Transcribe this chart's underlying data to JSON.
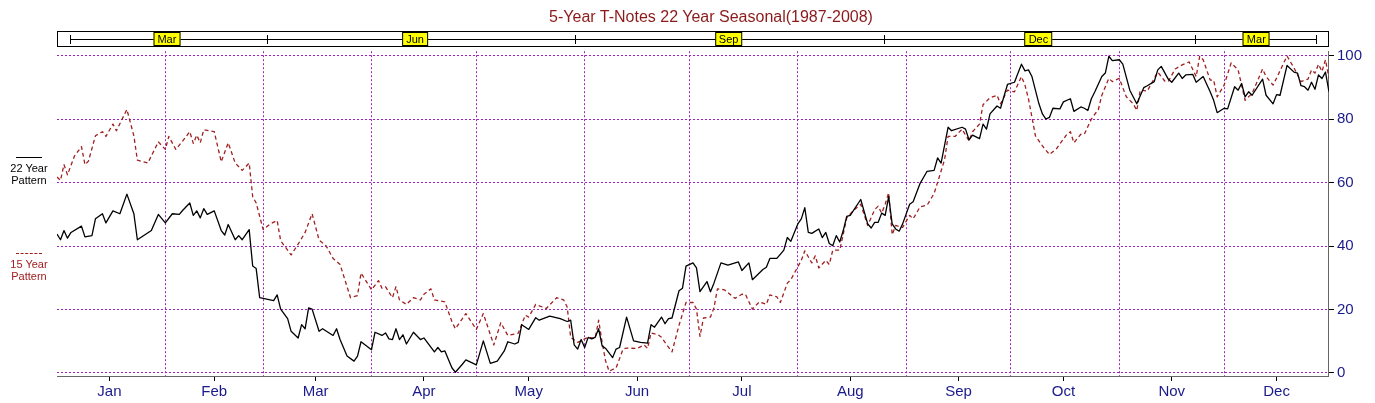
{
  "chart_data": {
    "type": "line",
    "title": "5-Year T-Notes 22 Year Seasonal(1987-2008)",
    "xlim": [
      "--01-01",
      "--12-31"
    ],
    "xticks": [
      {
        "value": "--01-16",
        "label": "Jan"
      },
      {
        "value": "--02-01",
        "label": null
      },
      {
        "value": "--02-15",
        "label": "Feb"
      },
      {
        "value": "--03-01",
        "label": null
      },
      {
        "value": "--03-16",
        "label": "Mar"
      },
      {
        "value": "--04-01",
        "label": null
      },
      {
        "value": "--04-16",
        "label": "Apr"
      },
      {
        "value": "--05-01",
        "label": null
      },
      {
        "value": "--05-16",
        "label": "May"
      },
      {
        "value": "--06-01",
        "label": null
      },
      {
        "value": "--06-16",
        "label": "Jun"
      },
      {
        "value": "--07-01",
        "label": null
      },
      {
        "value": "--07-16",
        "label": "Jul"
      },
      {
        "value": "--08-01",
        "label": null
      },
      {
        "value": "--08-16",
        "label": "Aug"
      },
      {
        "value": "--09-01",
        "label": null
      },
      {
        "value": "--09-16",
        "label": "Sep"
      },
      {
        "value": "--10-01",
        "label": null
      },
      {
        "value": "--10-16",
        "label": "Oct"
      },
      {
        "value": "--11-01",
        "label": null
      },
      {
        "value": "--11-16",
        "label": "Nov"
      },
      {
        "value": "--12-01",
        "label": null
      },
      {
        "value": "--12-16",
        "label": "Dec"
      }
    ],
    "annotations": [
      "Mar",
      "Jun",
      "Sep",
      "Dec",
      "Mar"
    ],
    "ylim": [
      -1,
      101.5
    ],
    "yticks": [
      0,
      20,
      40,
      60,
      80,
      100
    ],
    "grid": true,
    "legend": "left",
    "marker": "none",
    "series": [
      {
        "name": "22 Year Pattern",
        "color": "#000000",
        "line_style": "solid",
        "x": [
          "--01-01",
          "--01-02",
          "--01-03",
          "--01-04",
          "--01-05",
          "--01-08",
          "--01-09",
          "--01-11",
          "--01-12",
          "--01-14",
          "--01-15",
          "--01-17",
          "--01-19",
          "--01-21",
          "--01-23",
          "--01-24",
          "--01-28",
          "--01-30",
          "--02-01",
          "--02-03",
          "--02-05",
          "--02-06",
          "--02-08",
          "--02-09",
          "--02-10",
          "--02-11",
          "--02-12",
          "--02-13",
          "--02-15",
          "--02-17",
          "--02-18",
          "--02-19",
          "--02-21",
          "--02-22",
          "--02-23",
          "--02-25",
          "--02-26",
          "--02-27",
          "--02-28",
          "--03-04",
          "--03-05",
          "--03-06",
          "--03-08",
          "--03-09",
          "--03-11",
          "--03-12",
          "--03-13",
          "--03-14",
          "--03-15",
          "--03-17",
          "--03-18",
          "--03-21",
          "--03-22",
          "--03-23",
          "--03-25",
          "--03-27",
          "--03-28",
          "--03-29",
          "--04-01",
          "--04-02",
          "--04-04",
          "--04-05",
          "--04-06",
          "--04-07",
          "--04-08",
          "--04-09",
          "--04-10",
          "--04-11",
          "--04-13",
          "--04-15",
          "--04-16",
          "--04-19",
          "--04-20",
          "--04-21",
          "--04-22",
          "--04-24",
          "--04-25",
          "--04-27",
          "--04-28",
          "--05-01",
          "--05-03",
          "--05-05",
          "--05-07",
          "--05-09",
          "--05-10",
          "--05-12",
          "--05-13",
          "--05-14",
          "--05-16",
          "--05-18",
          "--05-19",
          "--05-22",
          "--05-25",
          "--05-27",
          "--05-28",
          "--05-29",
          "--05-30",
          "--05-31",
          "--06-01",
          "--06-02",
          "--06-03",
          "--06-04",
          "--06-05",
          "--06-06",
          "--06-07",
          "--06-09",
          "--06-10",
          "--06-11",
          "--06-13",
          "--06-15",
          "--06-17",
          "--06-19",
          "--06-20",
          "--06-21",
          "--06-23",
          "--06-24",
          "--06-25",
          "--06-26",
          "--06-28",
          "--06-29",
          "--06-30",
          "--07-02",
          "--07-03",
          "--07-04",
          "--07-06",
          "--07-07",
          "--07-08",
          "--07-10",
          "--07-12",
          "--07-15",
          "--07-16",
          "--07-18",
          "--07-19",
          "--07-22",
          "--07-23",
          "--07-24",
          "--07-26",
          "--07-28",
          "--07-29",
          "--07-30",
          "--08-01",
          "--08-02",
          "--08-03",
          "--08-04",
          "--08-05",
          "--08-07",
          "--08-08",
          "--08-09",
          "--08-10",
          "--08-11",
          "--08-12",
          "--08-13",
          "--08-14",
          "--08-15",
          "--08-16",
          "--08-19",
          "--08-21",
          "--08-22",
          "--08-23",
          "--08-24",
          "--08-25",
          "--08-26",
          "--08-27",
          "--08-28",
          "--08-29",
          "--08-30",
          "--08-31",
          "--09-02",
          "--09-03",
          "--09-05",
          "--09-07",
          "--09-09",
          "--09-10",
          "--09-11",
          "--09-13",
          "--09-14",
          "--09-17",
          "--09-18",
          "--09-19",
          "--09-20",
          "--09-22",
          "--09-23",
          "--09-24",
          "--09-25",
          "--09-27",
          "--09-28",
          "--09-30",
          "--10-02",
          "--10-04",
          "--10-05",
          "--10-06",
          "--10-07",
          "--10-09",
          "--10-10",
          "--10-11",
          "--10-12",
          "--10-13",
          "--10-15",
          "--10-16",
          "--10-18",
          "--10-19",
          "--10-21",
          "--10-22",
          "--10-23",
          "--10-24",
          "--10-25",
          "--10-27",
          "--10-28",
          "--10-29",
          "--10-30",
          "--11-01",
          "--11-02",
          "--11-04",
          "--11-06",
          "--11-08",
          "--11-09",
          "--11-11",
          "--11-12",
          "--11-13",
          "--11-15",
          "--11-16",
          "--11-18",
          "--11-19",
          "--11-20",
          "--11-22",
          "--11-23",
          "--11-25",
          "--11-27",
          "--11-28",
          "--11-29",
          "--12-01",
          "--12-02",
          "--12-04",
          "--12-05",
          "--12-06",
          "--12-07",
          "--12-08",
          "--12-09",
          "--12-12",
          "--12-13",
          "--12-15",
          "--12-16",
          "--12-17",
          "--12-19",
          "--12-21",
          "--12-22",
          "--12-23",
          "--12-24",
          "--12-25",
          "--12-26",
          "--12-27",
          "--12-28",
          "--12-29",
          "--12-30",
          "--12-31"
        ],
        "values": [
          43.8,
          42,
          44.9,
          42.5,
          44.3,
          46.3,
          42.9,
          43.3,
          48.6,
          50.2,
          47.3,
          51.1,
          50.2,
          56.4,
          50.2,
          42,
          44.9,
          50,
          47.3,
          50.2,
          50,
          51.3,
          53.6,
          49.7,
          51.1,
          48.9,
          51.8,
          50,
          51.1,
          44.9,
          43.5,
          46.8,
          42,
          43.3,
          42,
          45.2,
          33.7,
          32.9,
          23.7,
          22.8,
          24.6,
          20.1,
          17.1,
          13.1,
          11,
          15.2,
          13.9,
          20.5,
          20.1,
          13.1,
          13.9,
          11.8,
          13.9,
          10.5,
          5.3,
          3.7,
          5.3,
          9.8,
          7.3,
          12.8,
          11.8,
          12.6,
          10.7,
          10.5,
          13.9,
          10.5,
          12,
          9.1,
          12.8,
          10.5,
          11,
          6.6,
          8,
          6.6,
          6.9,
          1.6,
          0.2,
          2.7,
          4.1,
          2.5,
          10.1,
          3,
          3.7,
          6.9,
          9.8,
          9.1,
          9.6,
          15.2,
          13.7,
          17.4,
          16.6,
          17.9,
          17.1,
          16.2,
          16.6,
          8.8,
          7.5,
          10.5,
          8,
          11.2,
          10.7,
          11.2,
          13.9,
          8.5,
          7.7,
          4.8,
          7.5,
          8,
          17.6,
          10.1,
          9.6,
          9.4,
          15.2,
          14.4,
          17.6,
          15.5,
          17.1,
          17.3,
          25.9,
          26.7,
          33.7,
          34.7,
          33.1,
          25.6,
          28.8,
          25.6,
          28.3,
          34.7,
          34,
          35,
          32.3,
          34.7,
          29.4,
          32.6,
          33.3,
          36.1,
          36.1,
          38.7,
          42.7,
          41.5,
          47,
          48.6,
          52.1,
          44.3,
          44,
          45.4,
          42.7,
          44.3,
          40.8,
          40.1,
          43.3,
          41.3,
          44.9,
          49.4,
          49.7,
          54.7,
          47,
          45.7,
          47.5,
          47.5,
          50.4,
          49.7,
          55.6,
          47,
          45.4,
          44.7,
          47,
          53.2,
          54,
          59.8,
          63.6,
          63.9,
          67.8,
          66.2,
          77.5,
          76.4,
          77.5,
          76.9,
          73.5,
          75,
          73.9,
          78.5,
          76.9,
          81.7,
          84.2,
          83.5,
          91,
          91.7,
          97.4,
          95.3,
          95.6,
          93.5,
          84.9,
          81.7,
          80.1,
          80.6,
          83.5,
          83.3,
          85.5,
          86.5,
          82.5,
          83.9,
          83.5,
          82.8,
          86.5,
          88.7,
          93.5,
          94.6,
          99.9,
          98.5,
          98.8,
          97.4,
          89.2,
          84.9,
          90,
          90.6,
          91.9,
          95.6,
          96.7,
          92.7,
          91.7,
          94.6,
          92.9,
          94,
          94.2,
          91.7,
          93.5,
          88.7,
          86,
          82.1,
          83.5,
          83.3,
          90.3,
          89.2,
          91.3,
          87.1,
          88.7,
          87.6,
          92.7,
          87.6,
          84.9,
          87.8,
          87.6,
          97,
          94.9,
          94.6,
          90.6,
          90.3,
          89.2,
          91.7,
          89.5,
          94,
          92.9,
          94.9,
          88.7
        ]
      },
      {
        "name": "15 Year Pattern",
        "color": "#a02020",
        "line_style": "dashed",
        "x": [
          "--01-01",
          "--01-02",
          "--01-03",
          "--01-04",
          "--01-06",
          "--01-08",
          "--01-09",
          "--01-10",
          "--01-12",
          "--01-14",
          "--01-15",
          "--01-17",
          "--01-18",
          "--01-21",
          "--01-23",
          "--01-24",
          "--01-27",
          "--01-30",
          "--02-01",
          "--02-02",
          "--02-04",
          "--02-06",
          "--02-08",
          "--02-09",
          "--02-10",
          "--02-11",
          "--02-12",
          "--02-15",
          "--02-17",
          "--02-19",
          "--02-21",
          "--02-23",
          "--02-25",
          "--02-26",
          "--02-27",
          "--03-01",
          "--03-03",
          "--03-05",
          "--03-06",
          "--03-09",
          "--03-11",
          "--03-13",
          "--03-15",
          "--03-17",
          "--03-19",
          "--03-21",
          "--03-23",
          "--03-26",
          "--03-28",
          "--03-29",
          "--04-01",
          "--04-03",
          "--04-04",
          "--04-05",
          "--04-07",
          "--04-08",
          "--04-09",
          "--04-11",
          "--04-13",
          "--04-15",
          "--04-16",
          "--04-18",
          "--04-19",
          "--04-22",
          "--04-24",
          "--04-25",
          "--04-28",
          "--05-01",
          "--05-03",
          "--05-06",
          "--05-08",
          "--05-10",
          "--05-13",
          "--05-15",
          "--05-16",
          "--05-18",
          "--05-21",
          "--05-24",
          "--05-26",
          "--05-27",
          "--05-28",
          "--05-30",
          "--06-01",
          "--06-02",
          "--06-04",
          "--06-05",
          "--06-06",
          "--06-07",
          "--06-08",
          "--06-10",
          "--06-12",
          "--06-13",
          "--06-16",
          "--06-18",
          "--06-19",
          "--06-20",
          "--06-22",
          "--06-23",
          "--06-24",
          "--06-26",
          "--06-28",
          "--06-30",
          "--07-02",
          "--07-03",
          "--07-04",
          "--07-05",
          "--07-07",
          "--07-08",
          "--07-09",
          "--07-11",
          "--07-14",
          "--07-16",
          "--07-17",
          "--07-19",
          "--07-21",
          "--07-23",
          "--07-24",
          "--07-26",
          "--07-27",
          "--07-29",
          "--07-30",
          "--08-02",
          "--08-03",
          "--08-05",
          "--08-06",
          "--08-07",
          "--08-09",
          "--08-10",
          "--08-11",
          "--08-13",
          "--08-15",
          "--08-17",
          "--08-19",
          "--08-21",
          "--08-23",
          "--08-24",
          "--08-25",
          "--08-26",
          "--08-27",
          "--08-28",
          "--08-29",
          "--08-31",
          "--09-02",
          "--09-03",
          "--09-05",
          "--09-07",
          "--09-09",
          "--09-10",
          "--09-12",
          "--09-13",
          "--09-15",
          "--09-17",
          "--09-19",
          "--09-20",
          "--09-22",
          "--09-23",
          "--09-25",
          "--09-27",
          "--09-28",
          "--09-30",
          "--10-02",
          "--10-04",
          "--10-05",
          "--10-06",
          "--10-08",
          "--10-10",
          "--10-12",
          "--10-14",
          "--10-17",
          "--10-18",
          "--10-19",
          "--10-21",
          "--10-22",
          "--10-24",
          "--10-26",
          "--10-27",
          "--10-29",
          "--10-30",
          "--11-01",
          "--11-03",
          "--11-05",
          "--11-06",
          "--11-07",
          "--11-09",
          "--11-12",
          "--11-14",
          "--11-15",
          "--11-17",
          "--11-19",
          "--11-21",
          "--11-23",
          "--11-24",
          "--11-25",
          "--11-27",
          "--11-28",
          "--11-29",
          "--12-01",
          "--12-03",
          "--12-05",
          "--12-07",
          "--12-08",
          "--12-09",
          "--12-12",
          "--12-13",
          "--12-15",
          "--12-16",
          "--12-19",
          "--12-21",
          "--12-23",
          "--12-25",
          "--12-26",
          "--12-27",
          "--12-28",
          "--12-29",
          "--12-30",
          "--12-31"
        ],
        "values": [
          61.8,
          60.7,
          65.7,
          62.5,
          68.4,
          71.4,
          65.7,
          66.8,
          74.8,
          76.1,
          74.6,
          78.5,
          76.4,
          83.1,
          74.8,
          67.1,
          66.2,
          72.9,
          70.5,
          74.6,
          70.5,
          73.2,
          76.1,
          72.4,
          75,
          72.6,
          76.7,
          76.1,
          66.6,
          72.6,
          66.2,
          63.9,
          66.2,
          55.6,
          53.6,
          45.2,
          47,
          48.1,
          41.7,
          37.2,
          40.6,
          44.3,
          50.2,
          41.9,
          40.1,
          36.1,
          34.2,
          23.7,
          24.4,
          31.5,
          26.2,
          29.1,
          26.7,
          27.2,
          23.7,
          27.2,
          23,
          21.6,
          23.7,
          23,
          24.8,
          26.5,
          23,
          22.4,
          16.2,
          13.9,
          18.7,
          13.7,
          18.7,
          8.8,
          15.8,
          11.8,
          12.5,
          18.2,
          17.6,
          21.6,
          20.3,
          23.7,
          23,
          20.8,
          11.2,
          9.6,
          10.7,
          11.2,
          10.9,
          16.6,
          9.6,
          3.7,
          0.5,
          1.6,
          7.5,
          7.8,
          7.7,
          8.8,
          7.7,
          12.6,
          12,
          11.2,
          9.6,
          6.6,
          15,
          22.2,
          22.2,
          20.1,
          11.5,
          17.3,
          17.6,
          20.5,
          26.5,
          26.2,
          23.5,
          24.8,
          24.8,
          20.1,
          22.4,
          21.6,
          24.6,
          24,
          22.2,
          28.3,
          29.4,
          35.5,
          38.5,
          34.7,
          36.9,
          33.1,
          35.5,
          34.2,
          38.7,
          38.7,
          48.9,
          51.3,
          53.2,
          46.5,
          51.5,
          52.6,
          50.4,
          53.2,
          56.8,
          43.6,
          46.5,
          45.9,
          49.7,
          48.6,
          52.4,
          52.9,
          56.6,
          60.1,
          67.3,
          74.6,
          74.6,
          76.9,
          73.2,
          76.1,
          78.5,
          84.6,
          86.8,
          87.6,
          84.9,
          89.2,
          88.7,
          93.5,
          90.8,
          86.5,
          74.8,
          71.6,
          68.9,
          70.7,
          75.3,
          76.1,
          72.6,
          75.3,
          75.3,
          80.1,
          83.1,
          87.6,
          92.9,
          91.9,
          92.9,
          87.1,
          84.9,
          82.8,
          89.2,
          88.9,
          94.9,
          92.1,
          91.9,
          95.9,
          97.2,
          98.1,
          93.5,
          99.9,
          98.8,
          92.4,
          92.4,
          87.1,
          90.8,
          97.8,
          95.6,
          86,
          87.1,
          88.1,
          95.9,
          93.5,
          90.8,
          93,
          100,
          96.2,
          91.9,
          92.7,
          95.6,
          94.6,
          97.4,
          95.1,
          98.8,
          93
        ]
      }
    ]
  }
}
